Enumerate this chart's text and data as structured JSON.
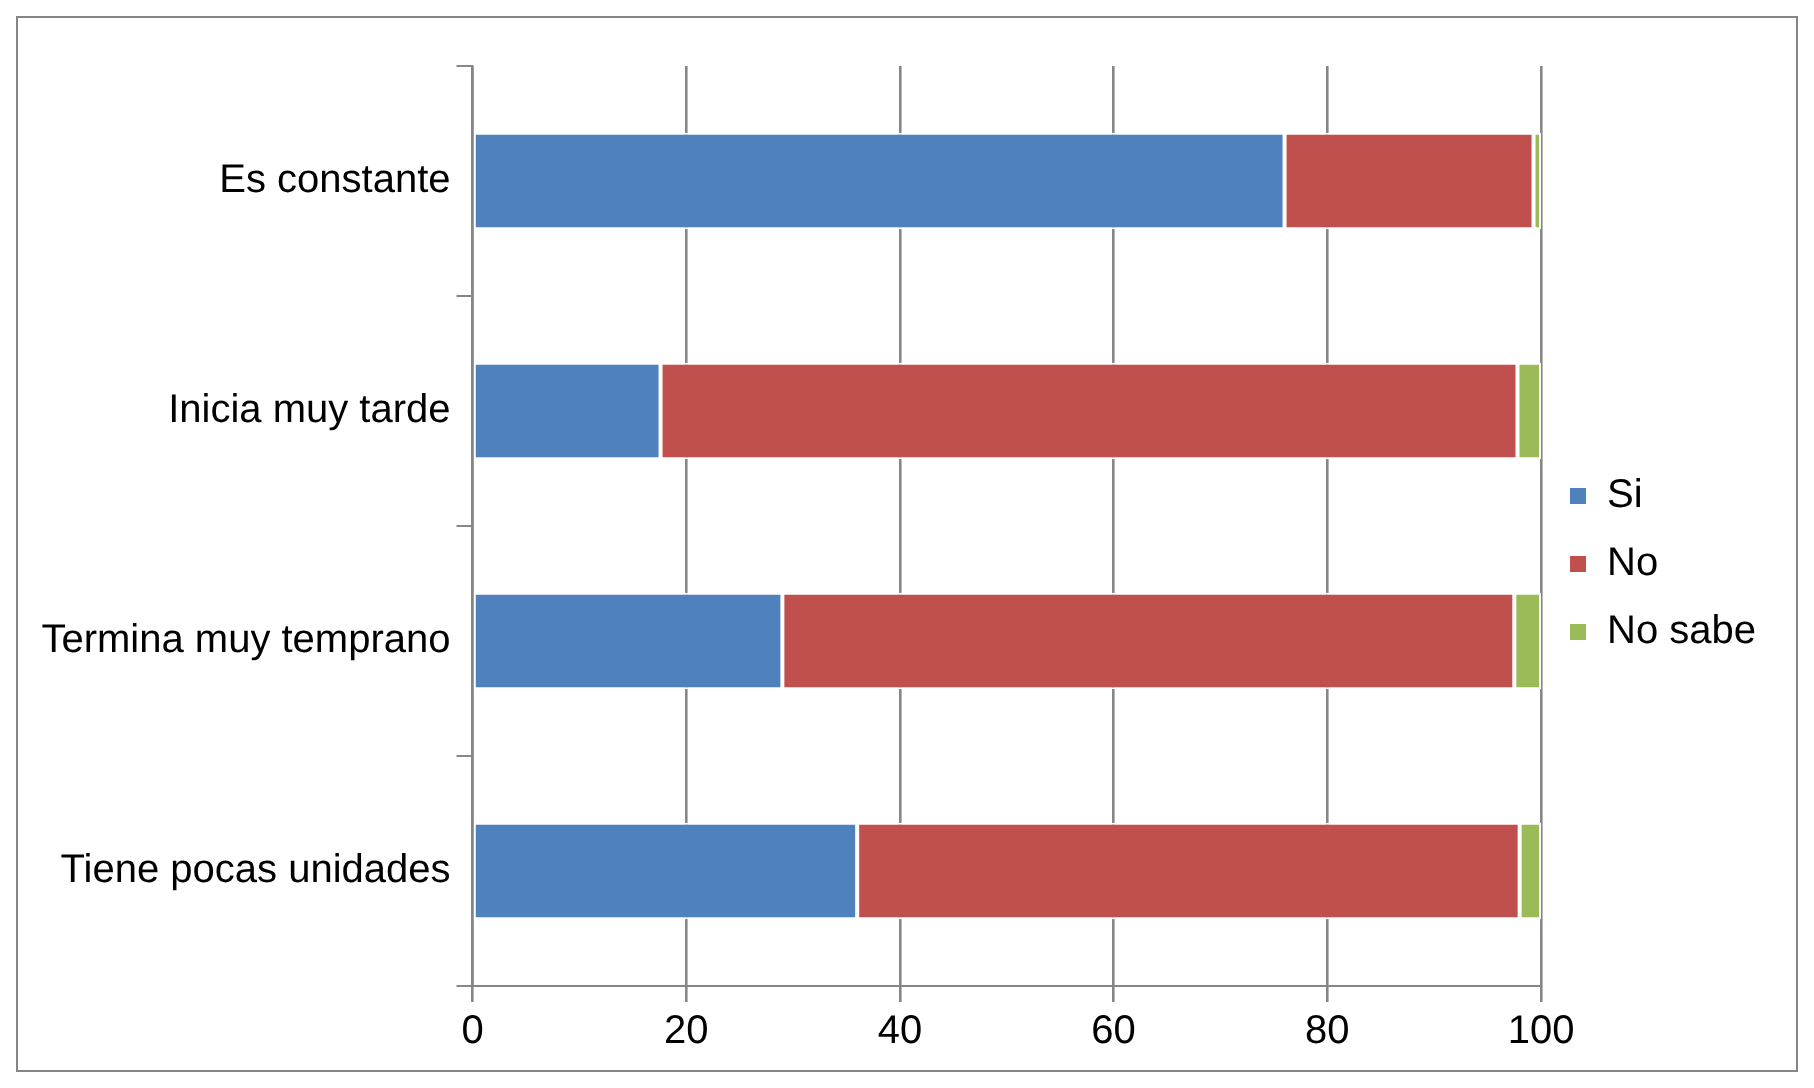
{
  "chart_data": {
    "type": "bar",
    "orientation": "horizontal",
    "stacked": true,
    "categories": [
      "Es constante",
      "Inicia muy tarde",
      "Termina muy temprano",
      "Tiene pocas unidades"
    ],
    "series": [
      {
        "name": "Si",
        "color": "#4f81bd",
        "values": [
          76,
          17.6,
          29,
          36
        ]
      },
      {
        "name": "No",
        "color": "#c0504d",
        "values": [
          23.3,
          80.2,
          68.5,
          62
        ]
      },
      {
        "name": "No sabe",
        "color": "#9bbb59",
        "values": [
          0.7,
          2.2,
          2.5,
          2
        ]
      }
    ],
    "xlim": [
      0,
      100
    ],
    "xticks": [
      0,
      20,
      40,
      60,
      80,
      100
    ],
    "grid": "x",
    "legend": "right"
  }
}
